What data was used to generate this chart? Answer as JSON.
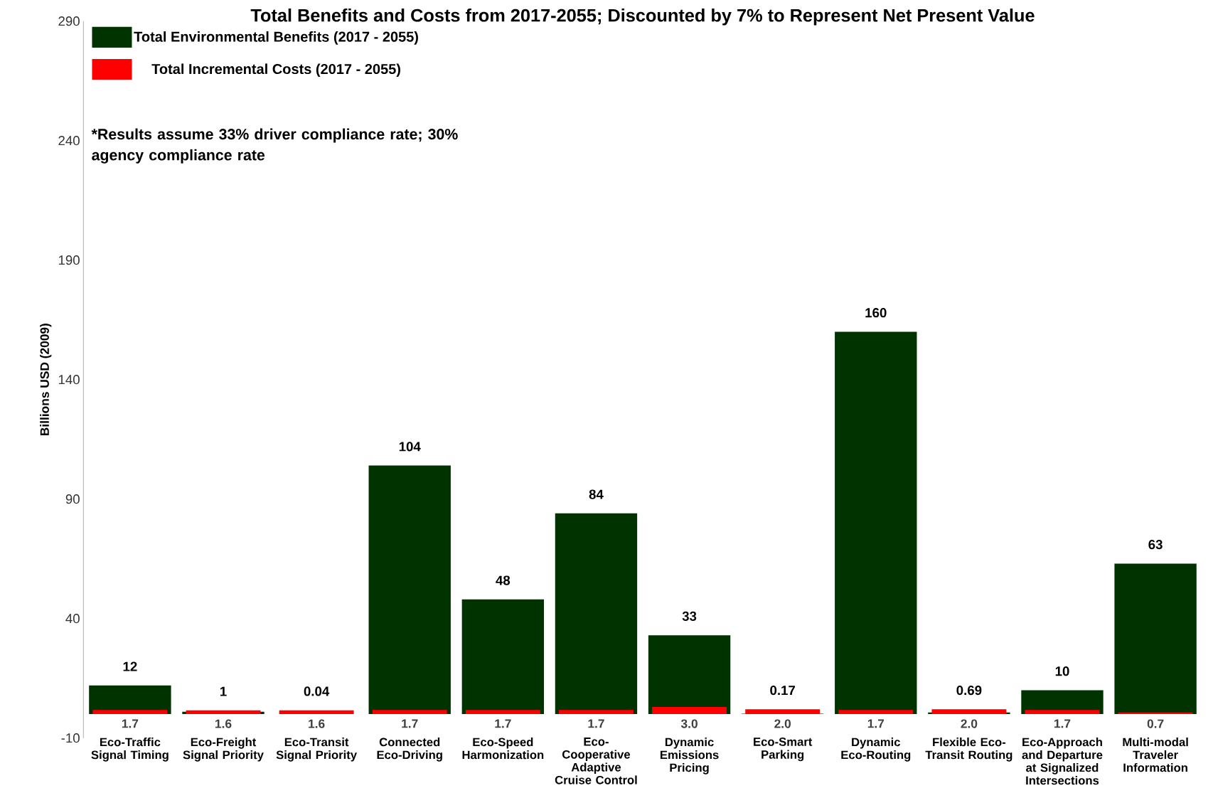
{
  "chart_data": {
    "type": "bar",
    "title": "Total Benefits and Costs from 2017-2055; Discounted by 7% to Represent Net Present Value",
    "ylabel": "Billions USD (2009)",
    "categories": [
      "Eco-Traffic Signal Timing",
      "Eco-Freight Signal Priority",
      "Eco-Transit Signal Priority",
      "Connected Eco-Driving",
      "Eco-Speed Harmonization",
      "Eco-Cooperative Adaptive Cruise Control",
      "Dynamic Emissions Pricing",
      "Eco-Smart Parking",
      "Dynamic Eco-Routing",
      "Flexible Eco-Transit Routing",
      "Eco-Approach and Departure at Signalized Intersections",
      "Multi-modal Traveler Information"
    ],
    "series": [
      {
        "name": "Total Environmental Benefits (2017 - 2055)",
        "color": "#003300",
        "values": [
          12,
          1,
          0.04,
          104,
          48,
          84,
          33,
          0.17,
          160,
          0.69,
          10,
          63
        ],
        "value_labels": [
          "12",
          "1",
          "0.04",
          "104",
          "48",
          "84",
          "33",
          "0.17",
          "160",
          "0.69",
          "10",
          "63"
        ]
      },
      {
        "name": "Total Incremental Costs (2017 - 2055)",
        "color": "#ff0000",
        "values": [
          1.7,
          1.6,
          1.6,
          1.7,
          1.7,
          1.7,
          3.0,
          2.0,
          1.7,
          2.0,
          1.7,
          0.7
        ],
        "value_labels": [
          "1.7",
          "1.6",
          "1.6",
          "1.7",
          "1.7",
          "1.7",
          "3.0",
          "2.0",
          "1.7",
          "2.0",
          "1.7",
          "0.7"
        ]
      }
    ],
    "ylim": [
      -10,
      290
    ],
    "yticks": [
      -10,
      40,
      90,
      140,
      190,
      240,
      290
    ],
    "grid": false,
    "legend": "top left",
    "annotations": [
      "*Results assume 33% driver compliance rate; 30% agency compliance rate"
    ]
  }
}
